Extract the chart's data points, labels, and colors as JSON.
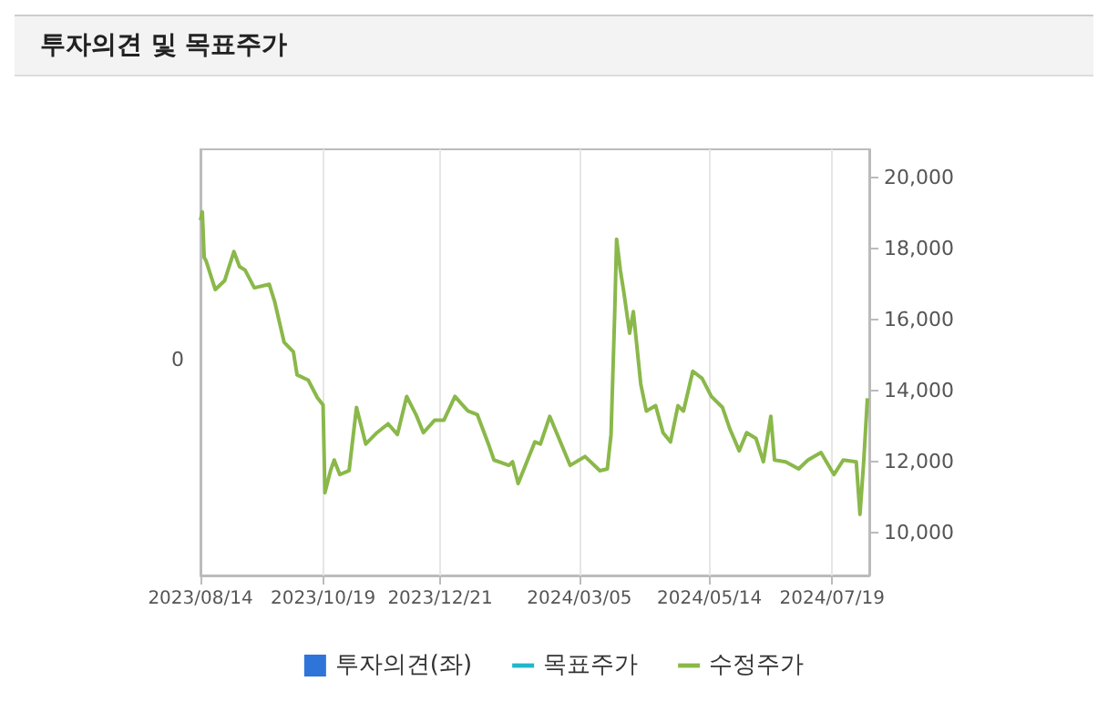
{
  "chart_data": {
    "type": "line",
    "title": "투자의견 및 목표주가",
    "x": [
      "2023-08-14",
      "2023-08-15",
      "2023-08-16",
      "2023-08-17",
      "2023-08-22",
      "2023-08-27",
      "2023-09-01",
      "2023-09-04",
      "2023-09-07",
      "2023-09-12",
      "2023-09-20",
      "2023-09-23",
      "2023-09-28",
      "2023-10-03",
      "2023-10-05",
      "2023-10-11",
      "2023-10-16",
      "2023-10-19",
      "2023-10-20",
      "2023-10-23",
      "2023-10-25",
      "2023-10-28",
      "2023-11-02",
      "2023-11-06",
      "2023-11-11",
      "2023-11-17",
      "2023-11-23",
      "2023-11-28",
      "2023-12-03",
      "2023-12-08",
      "2023-12-12",
      "2023-12-18",
      "2023-12-23",
      "2023-12-29",
      "2024-01-05",
      "2024-01-10",
      "2024-01-16",
      "2024-01-19",
      "2024-01-27",
      "2024-01-29",
      "2024-02-01",
      "2024-02-10",
      "2024-02-13",
      "2024-02-18",
      "2024-02-29",
      "2024-03-08",
      "2024-03-16",
      "2024-03-20",
      "2024-03-22",
      "2024-03-24",
      "2024-03-25",
      "2024-03-27",
      "2024-03-29",
      "2024-04-01",
      "2024-04-03",
      "2024-04-07",
      "2024-04-10",
      "2024-04-15",
      "2024-04-19",
      "2024-04-23",
      "2024-04-27",
      "2024-04-30",
      "2024-05-05",
      "2024-05-10",
      "2024-05-15",
      "2024-05-21",
      "2024-05-25",
      "2024-05-30",
      "2024-06-03",
      "2024-06-08",
      "2024-06-12",
      "2024-06-16",
      "2024-06-18",
      "2024-06-24",
      "2024-07-01",
      "2024-07-06",
      "2024-07-13",
      "2024-07-20",
      "2024-07-25",
      "2024-08-01",
      "2024-08-03",
      "2024-08-05",
      "2024-08-07"
    ],
    "series": [
      {
        "name": "투자의견(좌)",
        "type": "bar",
        "color": "#2f74d8",
        "values": [
          null,
          null,
          null,
          null,
          null,
          null,
          null,
          null,
          null,
          null,
          null,
          null,
          null,
          null,
          null,
          null,
          null,
          null,
          null,
          null,
          null,
          null,
          null,
          null,
          null,
          null,
          null,
          null,
          null,
          null,
          null,
          null,
          null,
          null,
          null,
          null,
          null,
          null,
          null,
          null,
          null,
          null,
          null,
          null,
          null,
          null,
          null,
          null,
          null,
          null,
          null,
          null,
          null,
          null,
          null,
          null,
          null,
          null,
          null,
          null,
          null,
          null,
          null,
          null,
          null,
          null,
          null,
          null,
          null,
          null,
          null,
          null,
          null,
          null,
          null,
          null,
          null,
          null,
          null,
          null,
          null,
          null,
          null
        ]
      },
      {
        "name": "목표주가",
        "type": "line",
        "axis": "y2",
        "color": "#1fb8c9",
        "values": [
          null,
          null,
          null,
          null,
          null,
          null,
          null,
          null,
          null,
          null,
          null,
          null,
          null,
          null,
          null,
          null,
          null,
          null,
          null,
          null,
          null,
          null,
          null,
          null,
          null,
          null,
          null,
          null,
          null,
          null,
          null,
          null,
          null,
          null,
          null,
          null,
          null,
          null,
          null,
          null,
          null,
          null,
          null,
          null,
          null,
          null,
          null,
          null,
          null,
          null,
          null,
          null,
          null,
          null,
          null,
          null,
          null,
          null,
          null,
          null,
          null,
          null,
          null,
          null,
          null,
          null,
          null,
          null,
          null,
          null,
          null,
          null,
          null,
          null,
          null,
          null,
          null,
          null,
          null,
          null,
          null,
          null,
          null
        ]
      },
      {
        "name": "수정주가",
        "axis": "y2",
        "color": "#8ab84a",
        "values": [
          18800,
          19040,
          17760,
          17660,
          16850,
          17100,
          17920,
          17500,
          17400,
          16900,
          17000,
          16500,
          15370,
          15100,
          14450,
          14300,
          13800,
          13600,
          11130,
          11750,
          12050,
          11640,
          11750,
          13530,
          12500,
          12820,
          13070,
          12770,
          13840,
          13330,
          12820,
          13170,
          13170,
          13840,
          13430,
          13330,
          12500,
          12050,
          11900,
          12000,
          11390,
          12560,
          12500,
          13280,
          11900,
          12150,
          11750,
          11800,
          12770,
          16230,
          18270,
          17400,
          16740,
          15620,
          16230,
          14190,
          13430,
          13580,
          12820,
          12560,
          13580,
          13430,
          14550,
          14350,
          13840,
          13530,
          12920,
          12310,
          12820,
          12660,
          12000,
          13280,
          12050,
          12000,
          11800,
          12050,
          12260,
          11640,
          12050,
          12000,
          10520,
          12000,
          13790
        ]
      }
    ],
    "annotations": [
      "0"
    ],
    "xlim": [
      "2023-08-14",
      "2024-08-08"
    ],
    "xticks": [
      {
        "value": "2023-08-14",
        "label": "2023/08/14"
      },
      {
        "value": "2023-10-19",
        "label": "2023/10/19"
      },
      {
        "value": "2023-12-21",
        "label": "2023/12/21"
      },
      {
        "value": "2024-03-05",
        "label": "2024/03/05"
      },
      {
        "value": "2024-05-14",
        "label": "2024/05/14"
      },
      {
        "value": "2024-07-19",
        "label": "2024/07/19"
      }
    ],
    "y2lim": [
      8800,
      20800
    ],
    "y2ticks": [
      {
        "value": 10000,
        "label": "10,000"
      },
      {
        "value": 12000,
        "label": "12,000"
      },
      {
        "value": 14000,
        "label": "14,000"
      },
      {
        "value": 16000,
        "label": "16,000"
      },
      {
        "value": 18000,
        "label": "18,000"
      },
      {
        "value": 20000,
        "label": "20,000"
      }
    ],
    "grid": "x",
    "legend": "bottom",
    "marker": "none",
    "line_style": "solid"
  }
}
